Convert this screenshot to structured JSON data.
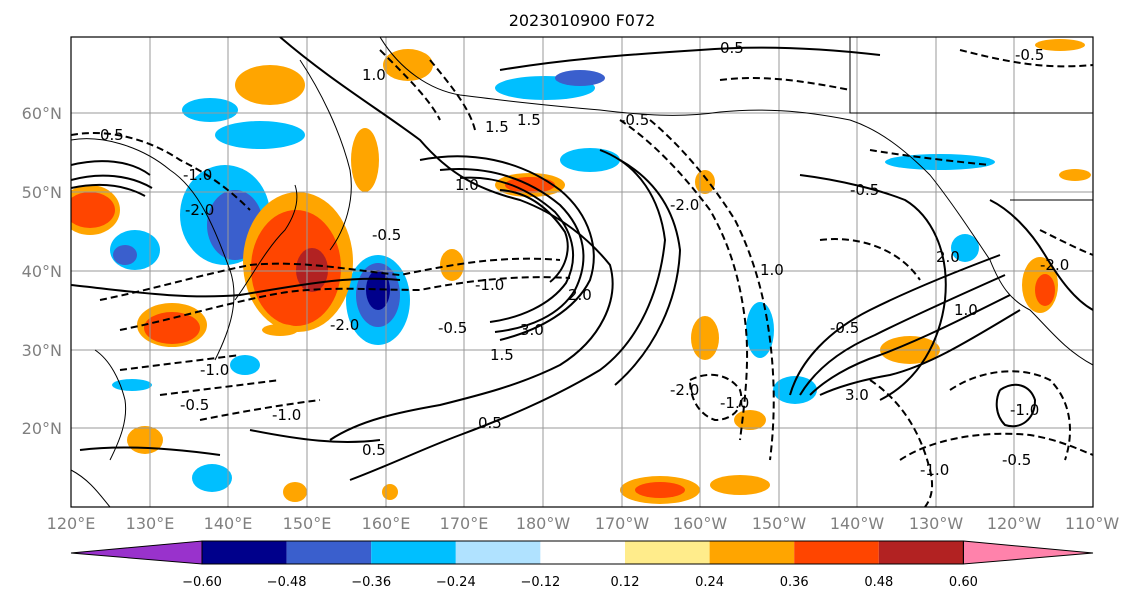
{
  "title": "2023010900 F072",
  "map": {
    "lat_labels": [
      "60°N",
      "50°N",
      "40°N",
      "30°N",
      "20°N"
    ],
    "lon_labels": [
      "120°E",
      "130°E",
      "140°E",
      "150°E",
      "160°E",
      "170°E",
      "180°W",
      "170°W",
      "160°W",
      "150°W",
      "140°W",
      "130°W",
      "120°W",
      "110°W"
    ]
  },
  "colorbar": {
    "tick_labels": [
      "−0.60",
      "−0.48",
      "−0.36",
      "−0.24",
      "−0.12",
      "0.12",
      "0.24",
      "0.36",
      "0.48",
      "0.60"
    ],
    "colors": [
      "#9932CC",
      "#00008B",
      "#3A5FCD",
      "#00BFFF",
      "#B0E2FF",
      "#FFFFFF",
      "#FFEC8B",
      "#FFA500",
      "#FF4500",
      "#B22222",
      "#FF82AB"
    ]
  },
  "contour_labels": {
    "solid": [
      "0.5",
      "1.0",
      "1.5",
      "1.5",
      "2.0",
      "3.0",
      "2.0",
      "1.5",
      "1.0",
      "0.5",
      "0.5",
      "3.0",
      "1.0",
      "0.5",
      "1.0"
    ],
    "dashed": [
      "-0.5",
      "-1.0",
      "-2.0",
      "-2.0",
      "-0.5",
      "-0.5",
      "-1.0",
      "-1.0",
      "-2.0",
      "-0.5",
      "-1.0",
      "-0.5",
      "-0.5",
      "-1.0",
      "-0.5",
      "-2.0",
      "-1.0",
      "-0.5",
      "-1.0",
      "-2.0"
    ]
  }
}
